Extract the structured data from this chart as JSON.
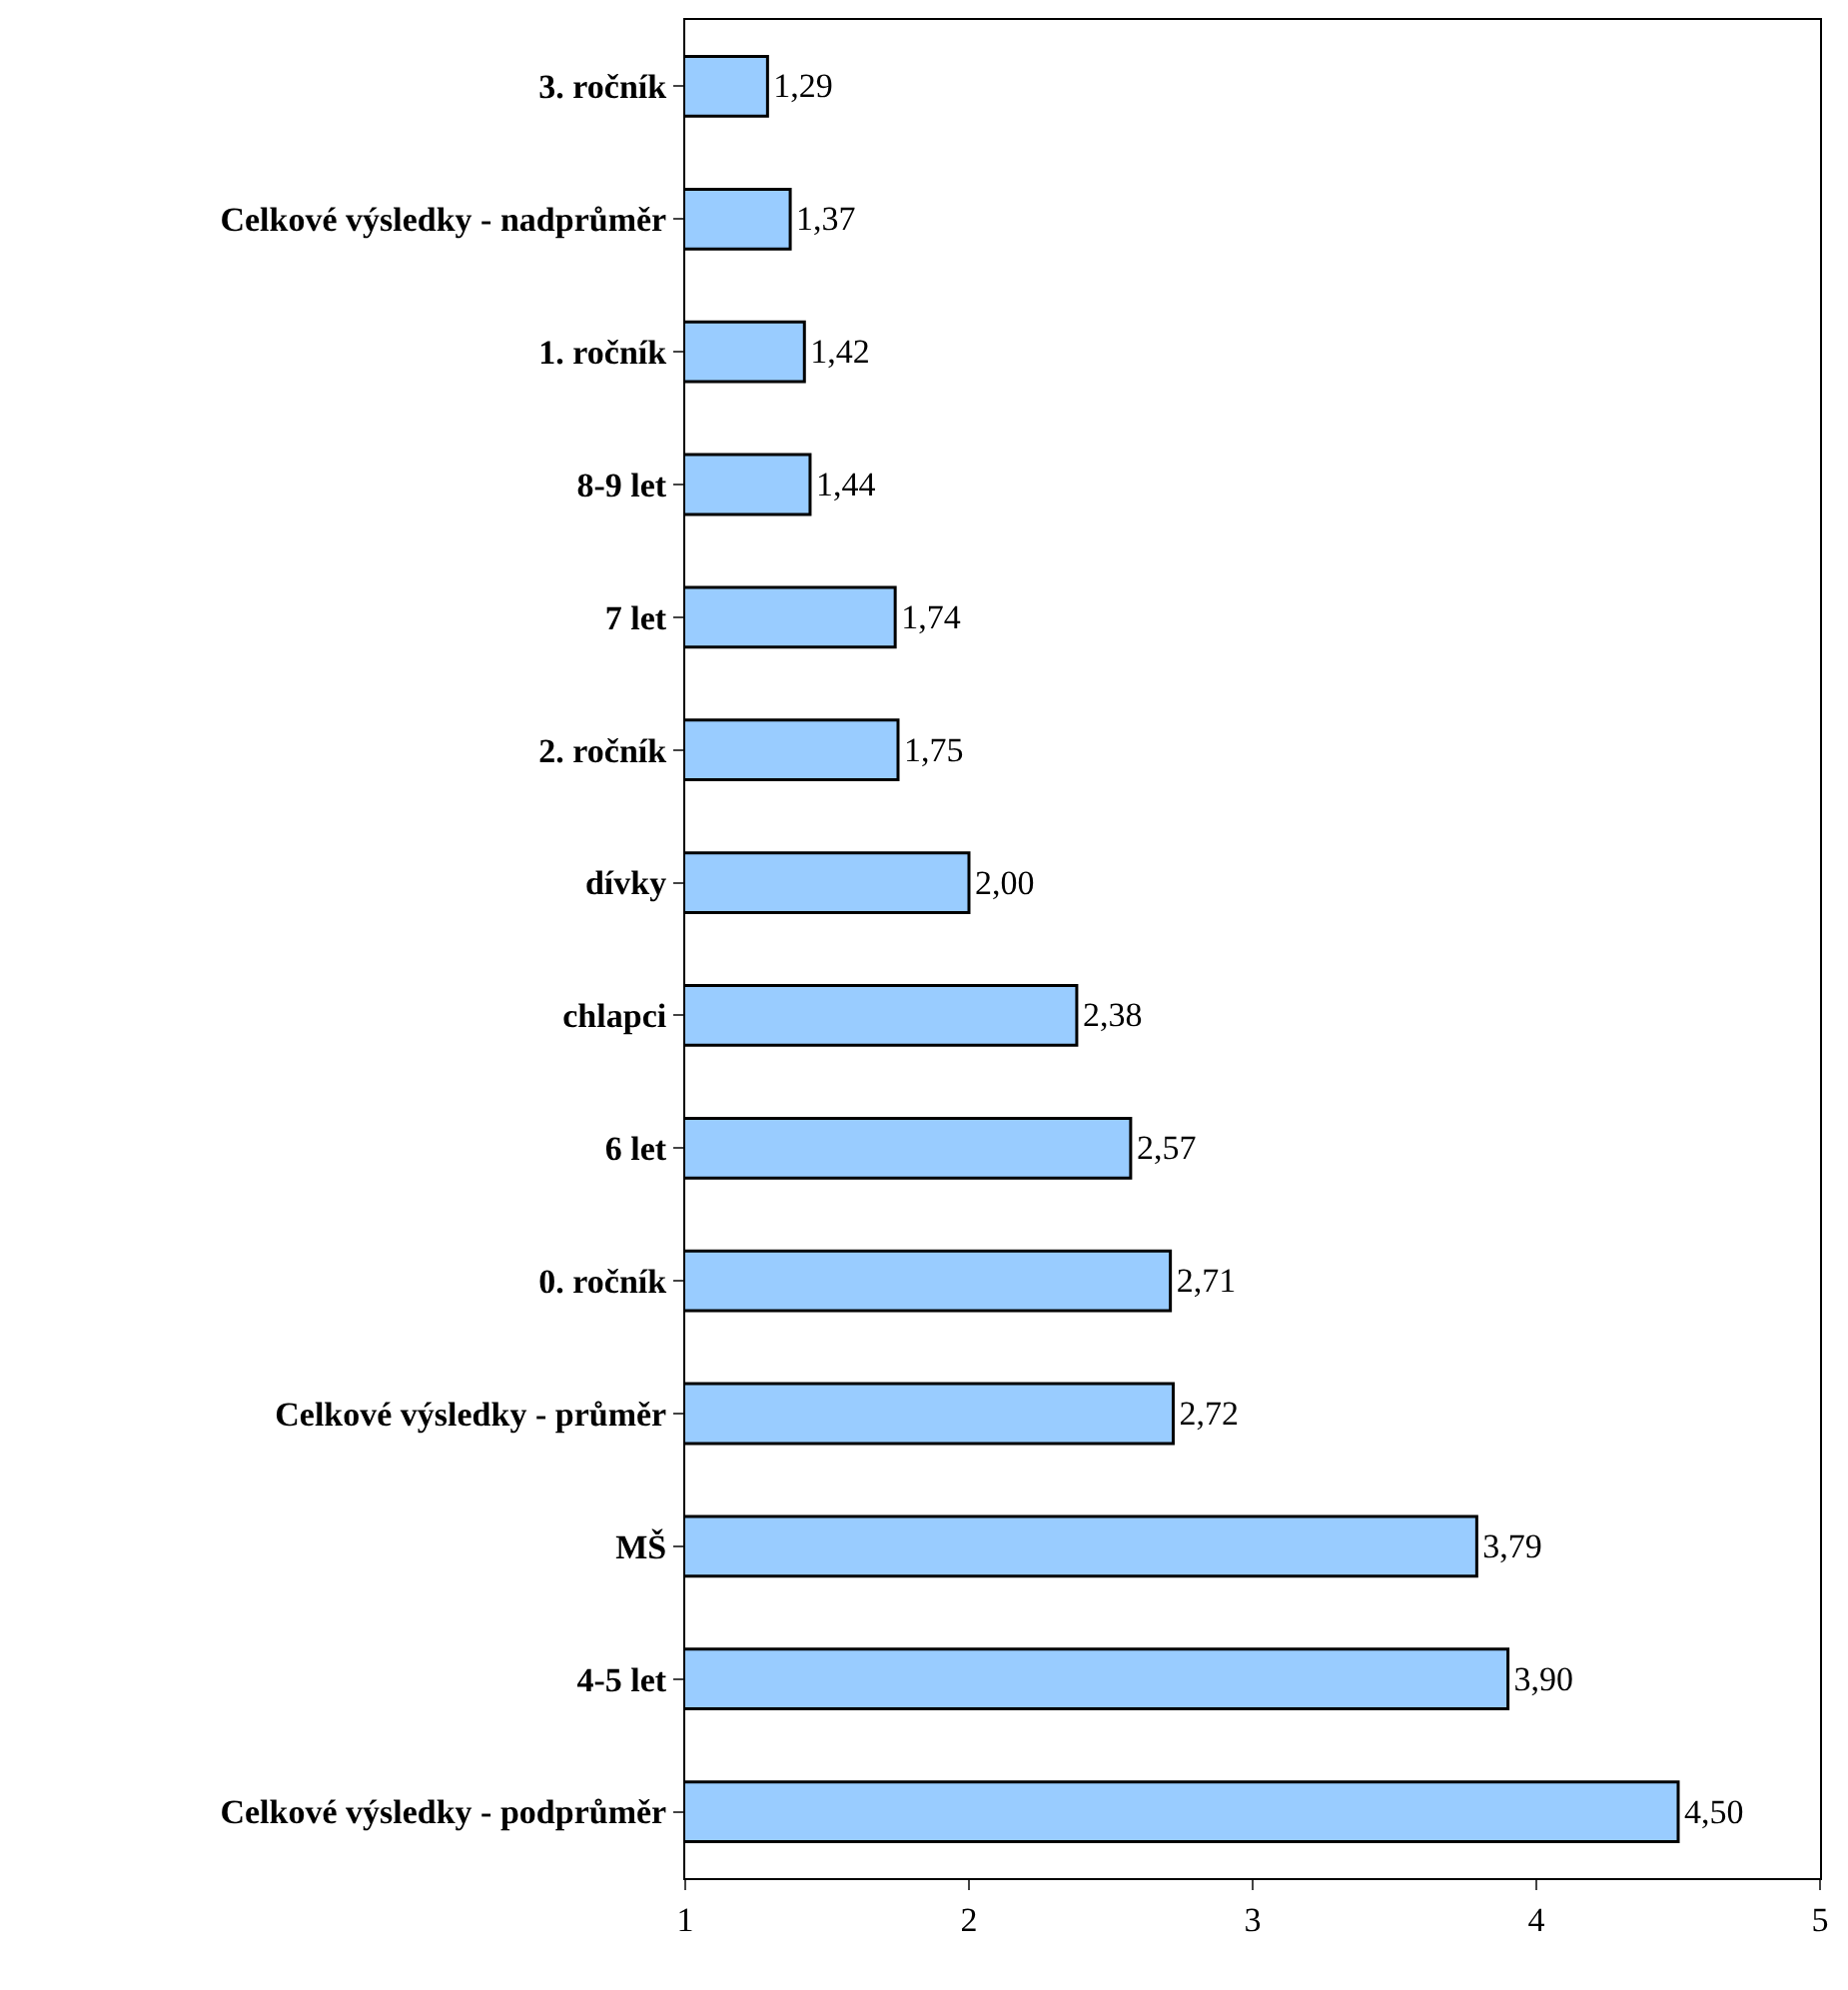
{
  "chart_data": {
    "type": "bar",
    "orientation": "horizontal",
    "categories": [
      "3. ročník",
      "Celkové výsledky - nadprůměr",
      "1. ročník",
      "8-9 let",
      "7 let",
      "2. ročník",
      "dívky",
      "chlapci",
      "6 let",
      "0. ročník",
      "Celkové výsledky - průměr",
      "MŠ",
      "4-5 let",
      "Celkové výsledky - podprůměr"
    ],
    "values": [
      1.29,
      1.37,
      1.42,
      1.44,
      1.74,
      1.75,
      2.0,
      2.38,
      2.57,
      2.71,
      2.72,
      3.79,
      3.9,
      4.5
    ],
    "value_labels": [
      "1,29",
      "1,37",
      "1,42",
      "1,44",
      "1,74",
      "1,75",
      "2,00",
      "2,38",
      "2,57",
      "2,71",
      "2,72",
      "3,79",
      "3,90",
      "4,50"
    ],
    "color": "#99ccff",
    "xlim": [
      1,
      5
    ],
    "xticks": [
      1,
      2,
      3,
      4,
      5
    ],
    "grid": false
  }
}
